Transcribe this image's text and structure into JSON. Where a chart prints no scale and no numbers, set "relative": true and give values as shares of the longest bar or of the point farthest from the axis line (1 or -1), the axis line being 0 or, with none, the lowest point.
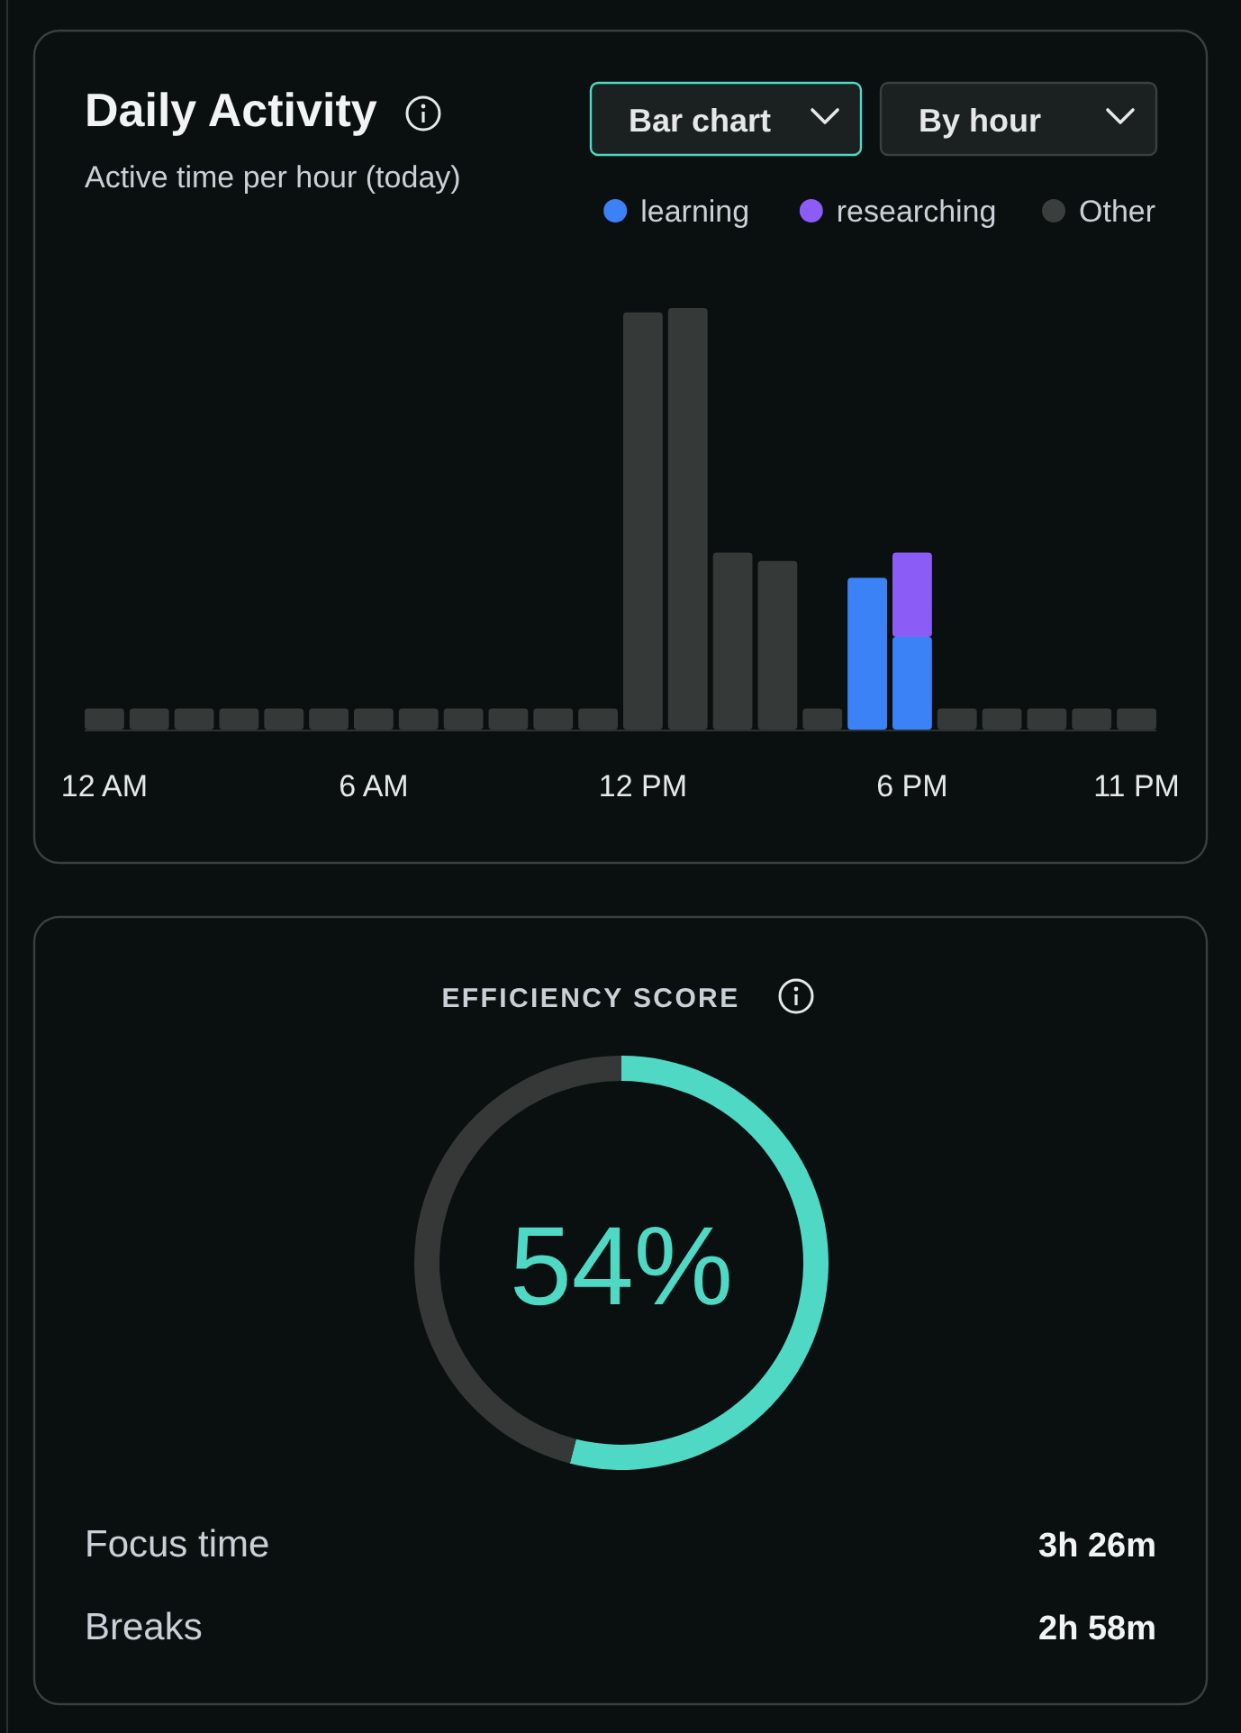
{
  "chart_data": [
    {
      "type": "bar",
      "title": "Daily Activity",
      "subtitle": "Active time per hour (today)",
      "annotations": [
        "Bar chart",
        "By hour"
      ],
      "categories": [
        "12 AM",
        null,
        null,
        null,
        null,
        null,
        "6 AM",
        null,
        null,
        null,
        null,
        null,
        "12 PM",
        null,
        null,
        null,
        null,
        null,
        "6 PM",
        null,
        null,
        null,
        null,
        "11 PM"
      ],
      "stacked": true,
      "relative": true,
      "legend": "top right",
      "series": [
        {
          "name": "learning",
          "color": "#3b82f6",
          "values": [
            null,
            null,
            null,
            null,
            null,
            null,
            null,
            null,
            null,
            null,
            null,
            null,
            null,
            null,
            null,
            null,
            null,
            0.36,
            0.22,
            null,
            null,
            null,
            null,
            null
          ]
        },
        {
          "name": "researching",
          "color": "#8b5cf6",
          "values": [
            null,
            null,
            null,
            null,
            null,
            null,
            null,
            null,
            null,
            null,
            null,
            null,
            null,
            null,
            null,
            null,
            null,
            null,
            0.2,
            null,
            null,
            null,
            null,
            null
          ]
        },
        {
          "name": "Other",
          "color": "#353937",
          "values": [
            0.05,
            0.05,
            0.05,
            0.05,
            0.05,
            0.05,
            0.05,
            0.05,
            0.05,
            0.05,
            0.05,
            0.05,
            0.99,
            1,
            0.42,
            0.4,
            0.05,
            null,
            null,
            0.05,
            0.05,
            0.05,
            0.05,
            0.05
          ]
        }
      ]
    },
    {
      "type": "donut",
      "title": "EFFICIENCY SCORE",
      "categories": [
        null,
        null
      ],
      "values": [
        54,
        46
      ],
      "colors": [
        "#4fd8c4",
        "#353836"
      ],
      "value_labels": [
        "54%",
        null
      ],
      "annotations": [
        "Focus time",
        "3h 26m",
        "Breaks",
        "2h 58m"
      ]
    }
  ]
}
